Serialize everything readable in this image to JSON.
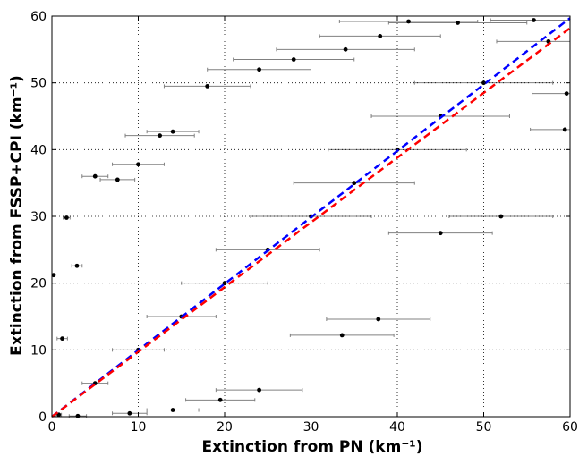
{
  "chart_data": {
    "type": "scatter",
    "title": "",
    "xlabel": "Extinction from PN (km⁻¹)",
    "ylabel": "Extinction from FSSP+CPI (km⁻¹)",
    "xlim": [
      0,
      60
    ],
    "ylim": [
      0,
      60
    ],
    "xticks": [
      0,
      10,
      20,
      30,
      40,
      50,
      60
    ],
    "yticks": [
      0,
      10,
      20,
      30,
      40,
      50,
      60
    ],
    "grid": "dotted",
    "legend": "none",
    "colors": {
      "points": "#000000",
      "errorbars": "#808080",
      "fit_blue": "#0000ff",
      "fit_red": "#ff0000"
    },
    "fit_lines": [
      {
        "color": "#0000ff",
        "style": "dashed",
        "points": [
          [
            0,
            0
          ],
          [
            60,
            59.7
          ]
        ]
      },
      {
        "color": "#ff0000",
        "style": "dashed",
        "points": [
          [
            0,
            0
          ],
          [
            60,
            58.2
          ]
        ]
      }
    ],
    "series": [
      {
        "errorbar_direction": "horizontal",
        "points": [
          [
            0.2,
            21.2,
            0
          ],
          [
            1.2,
            11.7,
            0.6
          ],
          [
            1.7,
            29.8,
            0.4
          ],
          [
            2.9,
            22.6,
            0.6
          ],
          [
            5.0,
            36.0,
            1.5
          ],
          [
            7.6,
            35.5,
            2.0
          ],
          [
            10.0,
            37.8,
            3.0
          ],
          [
            12.5,
            42.1,
            4.0
          ],
          [
            14.0,
            42.7,
            3.0
          ],
          [
            18.0,
            49.5,
            5.0
          ],
          [
            24.0,
            52.0,
            6.0
          ],
          [
            28.0,
            53.5,
            7.0
          ],
          [
            34.0,
            55.0,
            8.0
          ],
          [
            38.0,
            57.0,
            7.0
          ],
          [
            41.3,
            59.2,
            8.0
          ],
          [
            47.0,
            59.0,
            8.0
          ],
          [
            55.8,
            59.4,
            5.0
          ],
          [
            57.5,
            56.2,
            6.0
          ],
          [
            59.6,
            48.4,
            4.0
          ],
          [
            59.4,
            43.0,
            4.0
          ],
          [
            52.0,
            30.0,
            6.0
          ],
          [
            45.0,
            27.5,
            6.0
          ],
          [
            37.8,
            14.6,
            6.0
          ],
          [
            33.6,
            12.2,
            6.0
          ],
          [
            24.0,
            4.0,
            5.0
          ],
          [
            19.5,
            2.5,
            4.0
          ],
          [
            14.0,
            1.0,
            3.0
          ],
          [
            9.0,
            0.5,
            2.0
          ],
          [
            3.0,
            0.1,
            1.0
          ],
          [
            0.8,
            0.3,
            0.3
          ],
          [
            5.0,
            5.0,
            1.5
          ],
          [
            10.0,
            10.0,
            3.0
          ],
          [
            15.0,
            15.0,
            4.0
          ],
          [
            20.0,
            20.0,
            5.0
          ],
          [
            25.0,
            25.0,
            6.0
          ],
          [
            30.0,
            30.0,
            7.0
          ],
          [
            35.0,
            35.0,
            7.0
          ],
          [
            40.0,
            40.0,
            8.0
          ],
          [
            45.0,
            45.0,
            8.0
          ],
          [
            50.0,
            50.0,
            8.0
          ]
        ]
      }
    ]
  }
}
